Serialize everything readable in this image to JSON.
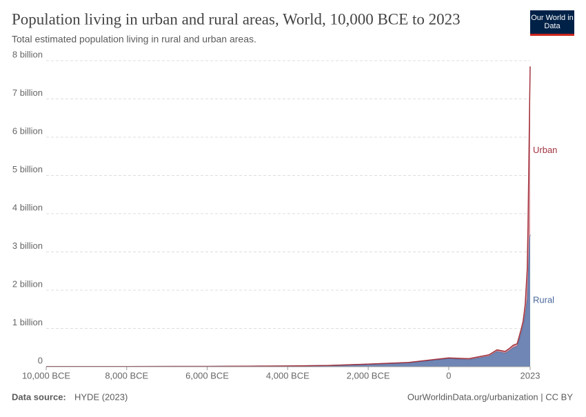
{
  "header": {
    "logo": "Our World in Data"
  },
  "chart_data": {
    "type": "stacked-area",
    "title": "Population living in urban and rural areas, World, 10,000 BCE to 2023",
    "subtitle": "Total estimated population living in rural and urban areas.",
    "x": [
      -10000,
      -8000,
      -6000,
      -4000,
      -3000,
      -2000,
      -1000,
      0,
      500,
      1000,
      1200,
      1400,
      1500,
      1600,
      1700,
      1800,
      1850,
      1900,
      1950,
      1970,
      1990,
      2000,
      2010,
      2023
    ],
    "series": [
      {
        "name": "Rural",
        "color": "#4c6a9c",
        "fill": "#7086b4",
        "values": [
          0.0045,
          0.005,
          0.007,
          0.018,
          0.03,
          0.065,
          0.105,
          0.215,
          0.19,
          0.28,
          0.4,
          0.36,
          0.42,
          0.5,
          0.54,
          0.9,
          1.1,
          1.4,
          1.8,
          2.4,
          3.0,
          3.3,
          3.4,
          3.45
        ]
      },
      {
        "name": "Urban",
        "color": "#a2333f",
        "fill": "#d99aa2",
        "values": [
          0,
          0,
          0.0001,
          0.0005,
          0.001,
          0.002,
          0.005,
          0.015,
          0.02,
          0.03,
          0.04,
          0.04,
          0.05,
          0.06,
          0.06,
          0.08,
          0.1,
          0.23,
          0.75,
          1.3,
          2.3,
          2.8,
          3.5,
          4.4
        ]
      }
    ],
    "xlim": [
      -10000,
      2023
    ],
    "xticks": [
      {
        "value": -10000,
        "label": "10,000 BCE"
      },
      {
        "value": -8000,
        "label": "8,000 BCE"
      },
      {
        "value": -6000,
        "label": "6,000 BCE"
      },
      {
        "value": -4000,
        "label": "4,000 BCE"
      },
      {
        "value": -2000,
        "label": "2,000 BCE"
      },
      0,
      2023
    ],
    "ylim": [
      0,
      8
    ],
    "yticks": [
      0,
      {
        "value": 1,
        "label": "1 billion"
      },
      {
        "value": 2,
        "label": "2 billion"
      },
      {
        "value": 3,
        "label": "3 billion"
      },
      {
        "value": 4,
        "label": "4 billion"
      },
      {
        "value": 5,
        "label": "5 billion"
      },
      {
        "value": 6,
        "label": "6 billion"
      },
      {
        "value": 7,
        "label": "7 billion"
      },
      {
        "value": 8,
        "label": "8 billion"
      }
    ],
    "grid": true,
    "source_label": "Data source:",
    "source": "HYDE (2023)",
    "footer_right": "OurWorldinData.org/urbanization | CC BY"
  }
}
